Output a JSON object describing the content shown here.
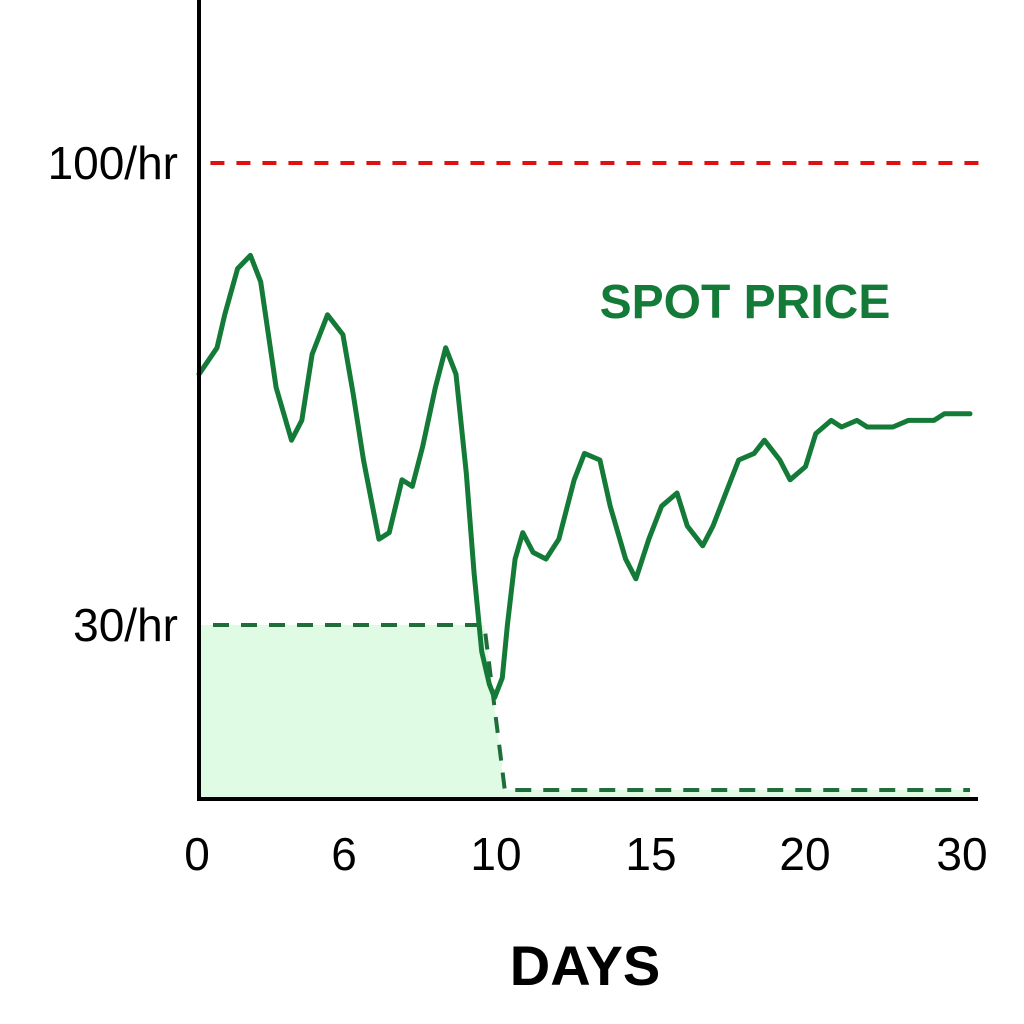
{
  "chart_data": {
    "type": "line",
    "title": "",
    "xlabel": "DAYS",
    "ylabel": "",
    "x_ticks": [
      "0",
      "6",
      "10",
      "15",
      "20",
      "30"
    ],
    "y_ticks": [
      "100/hr",
      "30/hr"
    ],
    "annotation": "SPOT PRICE",
    "series": [
      {
        "kind": "spot",
        "x": [
          0,
          0.7,
          1.0,
          1.5,
          2.0,
          2.4,
          3.0,
          3.6,
          4.0,
          4.4,
          5.0,
          5.6,
          6.0,
          6.4,
          7.0,
          7.4,
          7.9,
          8.3,
          8.7,
          9.2,
          9.6,
          10.0,
          10.4,
          10.7,
          11.0,
          11.3,
          11.5,
          11.8,
          12.0,
          12.3,
          12.6,
          13.0,
          13.5,
          14.0,
          14.6,
          15.0,
          15.6,
          16.0,
          16.6,
          17.0,
          17.5,
          18.0,
          18.6,
          19.0,
          19.6,
          20.0,
          20.6,
          21.0,
          21.6,
          22.0,
          22.6,
          23.0,
          23.6,
          24.0,
          24.6,
          25.0,
          25.6,
          26.0,
          26.6,
          27.0,
          27.6,
          28.0,
          28.6,
          29.0,
          29.6,
          30.0
        ],
        "values": [
          68,
          72,
          77,
          84,
          86,
          82,
          66,
          58,
          61,
          71,
          77,
          74,
          65,
          55,
          43,
          44,
          52,
          51,
          57,
          66,
          72,
          68,
          53,
          38,
          26,
          21,
          19,
          22,
          30,
          40,
          44,
          41,
          40,
          43,
          52,
          56,
          55,
          48,
          40,
          37,
          43,
          48,
          50,
          45,
          42,
          45,
          51,
          55,
          56,
          58,
          55,
          52,
          54,
          59,
          61,
          60,
          61,
          60,
          60,
          60,
          61,
          61,
          61,
          62,
          62,
          62
        ]
      },
      {
        "kind": "reserved",
        "x": [
          0,
          11.1,
          11.9,
          30
        ],
        "values": [
          30,
          30,
          5,
          5
        ]
      },
      {
        "kind": "cap",
        "x": [
          0.6,
          30
        ],
        "values": [
          100,
          100
        ]
      }
    ],
    "colors": {
      "spot": "#147a38",
      "reserved": "#1f6e3a",
      "reserved_fill": "#e0fbe3",
      "cap": "#e01010",
      "axis": "#000000"
    },
    "xlim": [
      0,
      30
    ],
    "ylim": [
      0,
      130
    ],
    "grid": false,
    "legend": "none"
  }
}
